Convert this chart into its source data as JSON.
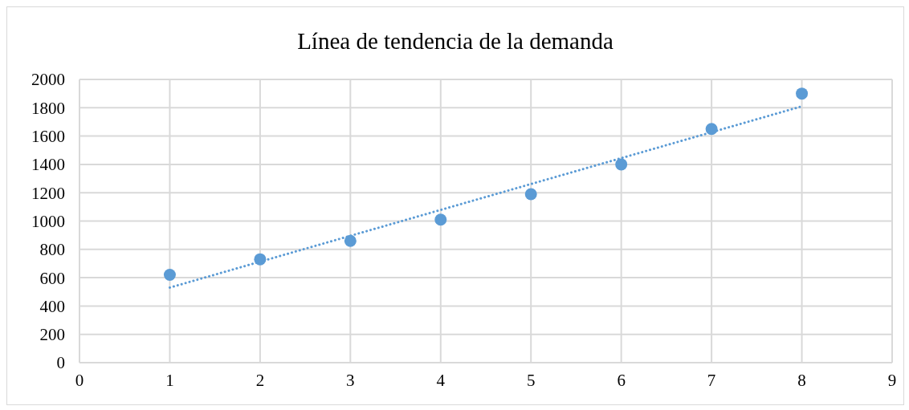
{
  "chart_data": {
    "type": "scatter",
    "title": "Línea de tendencia de la demanda",
    "xlim": [
      0,
      9
    ],
    "xticks": [
      0,
      1,
      2,
      3,
      4,
      5,
      6,
      7,
      8,
      9
    ],
    "ylim": [
      0,
      2000
    ],
    "yticks": [
      0,
      200,
      400,
      600,
      800,
      1000,
      1200,
      1400,
      1600,
      1800,
      2000
    ],
    "grid": true,
    "legend": false,
    "series": [
      {
        "color": "#5b9bd5",
        "marker": "circle",
        "x": [
          1,
          2,
          3,
          4,
          5,
          6,
          7,
          8
        ],
        "values": [
          620,
          730,
          860,
          1010,
          1190,
          1400,
          1650,
          1900
        ]
      },
      {
        "type": "line",
        "color": "#5b9bd5",
        "marker": "none",
        "line_style": "dotted",
        "x": [
          1,
          8
        ],
        "values": [
          530,
          1810
        ]
      }
    ]
  }
}
